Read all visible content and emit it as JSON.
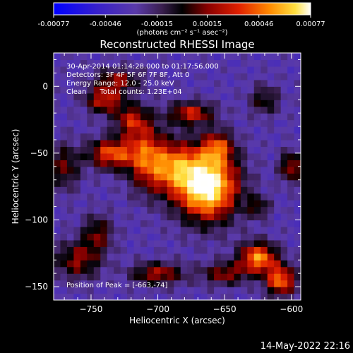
{
  "colors": {
    "background": "#000000",
    "text": "#ffffff",
    "colormap": [
      "#0000ff",
      "#4b2bb0",
      "#6a45a0",
      "#3b1f57",
      "#000000",
      "#7a0000",
      "#d01c00",
      "#ff6a00",
      "#ffb000",
      "#ffff60",
      "#ffffff"
    ]
  },
  "colorbar": {
    "tick_labels": [
      "-0.00077",
      "-0.00046",
      "-0.00015",
      "0.00015",
      "0.00046",
      "0.00077"
    ],
    "unit_label": "(photons cm⁻² s⁻¹ asec⁻²)",
    "range": [
      -0.00077,
      0.00077
    ]
  },
  "footer": {
    "timestamp": "14-May-2022 22:16"
  },
  "chart_data": {
    "type": "heatmap",
    "title": "Reconstructed RHESSI Image",
    "xlabel": "Heliocentric X (arcsec)",
    "ylabel": "Heliocentric Y (arcsec)",
    "xlim": [
      -778,
      -593
    ],
    "ylim": [
      -160,
      25
    ],
    "xticks": [
      -750,
      -700,
      -650,
      -600
    ],
    "yticks": [
      -150,
      -100,
      -50,
      0
    ],
    "xtick_labels": [
      "−750",
      "−700",
      "−650",
      "−600"
    ],
    "ytick_labels": [
      "−150",
      "−100",
      "−50",
      "0"
    ],
    "grid": false,
    "annotations": [
      "30-Apr-2014 01:14:28.000 to 01:17:56.000",
      "Detectors: 3F 4F 5F 6F 7F 8F, Att 0",
      "Energy Range: 12.0 - 25.0 keV",
      "Clean      Total counts: 1.23E+04"
    ],
    "peak_label": "Position of Peak = [-663,-74]",
    "peak": {
      "x": -663,
      "y": -74,
      "value": 0.00077
    },
    "emission_sources": [
      {
        "x": -663,
        "y": -74,
        "amplitude": 1.0,
        "sigma_x": 16,
        "sigma_y": 18
      },
      {
        "x": -690,
        "y": -60,
        "amplitude": 0.55,
        "sigma_x": 14,
        "sigma_y": 14
      },
      {
        "x": -710,
        "y": -50,
        "amplitude": 0.45,
        "sigma_x": 10,
        "sigma_y": 18
      },
      {
        "x": -735,
        "y": -50,
        "amplitude": 0.6,
        "sigma_x": 12,
        "sigma_y": 8
      },
      {
        "x": -770,
        "y": -60,
        "amplitude": 0.35,
        "sigma_x": 8,
        "sigma_y": 12
      },
      {
        "x": -740,
        "y": -10,
        "amplitude": 0.5,
        "sigma_x": 10,
        "sigma_y": 7
      },
      {
        "x": -720,
        "y": -25,
        "amplitude": 0.4,
        "sigma_x": 9,
        "sigma_y": 8
      },
      {
        "x": -675,
        "y": -20,
        "amplitude": 0.5,
        "sigma_x": 12,
        "sigma_y": 6
      },
      {
        "x": -655,
        "y": -45,
        "amplitude": 0.45,
        "sigma_x": 8,
        "sigma_y": 8
      },
      {
        "x": -625,
        "y": -128,
        "amplitude": 0.7,
        "sigma_x": 10,
        "sigma_y": 8
      },
      {
        "x": -608,
        "y": -145,
        "amplitude": 0.65,
        "sigma_x": 8,
        "sigma_y": 8
      },
      {
        "x": -650,
        "y": -140,
        "amplitude": 0.4,
        "sigma_x": 12,
        "sigma_y": 6
      },
      {
        "x": -700,
        "y": -140,
        "amplitude": 0.45,
        "sigma_x": 14,
        "sigma_y": 6
      },
      {
        "x": -760,
        "y": -130,
        "amplitude": 0.4,
        "sigma_x": 12,
        "sigma_y": 10
      },
      {
        "x": -745,
        "y": -110,
        "amplitude": 0.35,
        "sigma_x": 8,
        "sigma_y": 10
      },
      {
        "x": -730,
        "y": 5,
        "amplitude": 0.4,
        "sigma_x": 12,
        "sigma_y": 6
      },
      {
        "x": -620,
        "y": -10,
        "amplitude": 0.3,
        "sigma_x": 8,
        "sigma_y": 8
      },
      {
        "x": -600,
        "y": -60,
        "amplitude": 0.45,
        "sigma_x": 6,
        "sigma_y": 8
      },
      {
        "x": -625,
        "y": -90,
        "amplitude": 0.3,
        "sigma_x": 6,
        "sigma_y": 6
      }
    ]
  }
}
